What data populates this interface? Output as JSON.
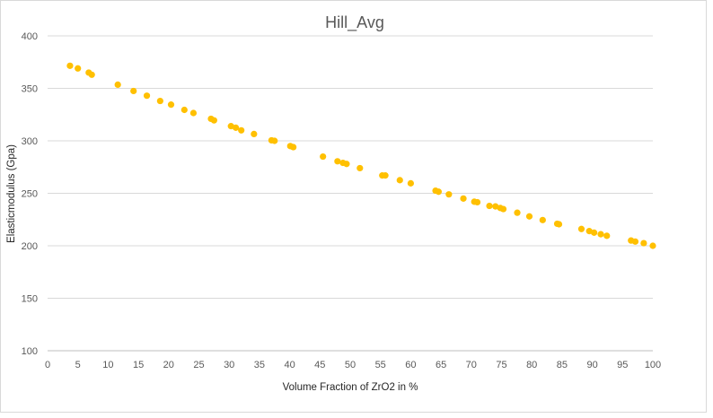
{
  "chart_data": {
    "type": "scatter",
    "title": "Hill_Avg",
    "xlabel": "Volume Fraction of ZrO2 in %",
    "ylabel": "Elasticmodulus (Gpa)",
    "xlim": [
      0,
      100
    ],
    "ylim": [
      100,
      400
    ],
    "x_ticks": [
      0,
      5,
      10,
      15,
      20,
      25,
      30,
      35,
      40,
      45,
      50,
      55,
      60,
      65,
      70,
      75,
      80,
      85,
      90,
      95,
      100
    ],
    "y_ticks": [
      100,
      150,
      200,
      250,
      300,
      350,
      400
    ],
    "grid": "horizontal",
    "legend": "none",
    "marker_color": "#FFC000",
    "series": [
      {
        "points": [
          [
            3.7,
            371.5
          ],
          [
            5,
            369
          ],
          [
            6.8,
            365
          ],
          [
            7.3,
            363
          ],
          [
            11.6,
            353.5
          ],
          [
            14.2,
            347.5
          ],
          [
            16.4,
            343
          ],
          [
            18.6,
            338
          ],
          [
            20.4,
            334.5
          ],
          [
            22.6,
            329.5
          ],
          [
            24.1,
            326.5
          ],
          [
            27,
            321
          ],
          [
            27.5,
            319.5
          ],
          [
            30.3,
            314
          ],
          [
            31.1,
            312.5
          ],
          [
            32,
            310
          ],
          [
            34.1,
            306.5
          ],
          [
            37,
            300.5
          ],
          [
            37.5,
            300
          ],
          [
            40.1,
            295
          ],
          [
            40.6,
            294
          ],
          [
            45.5,
            285
          ],
          [
            47.9,
            280.5
          ],
          [
            48.8,
            279
          ],
          [
            49.4,
            278
          ],
          [
            51.6,
            274
          ],
          [
            55.3,
            267
          ],
          [
            55.8,
            267
          ],
          [
            58.2,
            262.5
          ],
          [
            60,
            259.5
          ],
          [
            64.1,
            252.5
          ],
          [
            64.6,
            251.5
          ],
          [
            66.3,
            249
          ],
          [
            68.7,
            245
          ],
          [
            70.5,
            242
          ],
          [
            71,
            241.5
          ],
          [
            73,
            238
          ],
          [
            74,
            237.5
          ],
          [
            74.8,
            236
          ],
          [
            75.3,
            235
          ],
          [
            77.6,
            231.5
          ],
          [
            79.6,
            228
          ],
          [
            81.8,
            224.5
          ],
          [
            84.2,
            221
          ],
          [
            84.5,
            220.5
          ],
          [
            88.2,
            216
          ],
          [
            89.5,
            214
          ],
          [
            90.3,
            212.5
          ],
          [
            91.4,
            211
          ],
          [
            92.4,
            209.5
          ],
          [
            96.4,
            205
          ],
          [
            97.1,
            204
          ],
          [
            98.5,
            202.5
          ],
          [
            100,
            200
          ]
        ]
      }
    ]
  }
}
